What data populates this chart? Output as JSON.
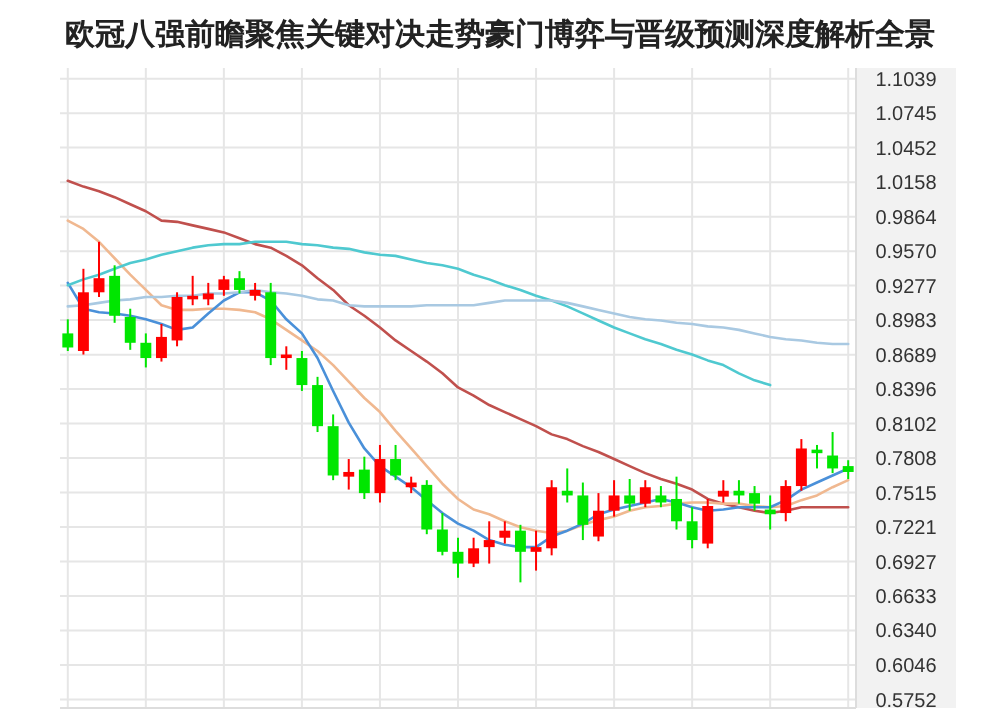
{
  "chart_data": {
    "type": "candlestick",
    "title": "欧冠八强前瞻聚焦关键对决走势豪门博弈与晋级预测深度解析全景",
    "categories": [
      null,
      null,
      null,
      null,
      null,
      null,
      null,
      null,
      null,
      null,
      null,
      null,
      null,
      null,
      null,
      null,
      null,
      null,
      null,
      null,
      null,
      null,
      null,
      null,
      null,
      null,
      null,
      null,
      null,
      null,
      null,
      null,
      null,
      null,
      null,
      null,
      null,
      null,
      null,
      null,
      null,
      null,
      null,
      null,
      null,
      null,
      null,
      null,
      null,
      null,
      null
    ],
    "ohlc": [
      [
        0.887,
        0.899,
        0.872,
        0.875
      ],
      [
        0.872,
        0.942,
        0.869,
        0.922
      ],
      [
        0.922,
        0.965,
        0.918,
        0.934
      ],
      [
        0.936,
        0.945,
        0.896,
        0.902
      ],
      [
        0.901,
        0.908,
        0.873,
        0.879
      ],
      [
        0.879,
        0.887,
        0.858,
        0.866
      ],
      [
        0.866,
        0.895,
        0.863,
        0.884
      ],
      [
        0.881,
        0.922,
        0.876,
        0.918
      ],
      [
        0.916,
        0.936,
        0.911,
        0.919
      ],
      [
        0.916,
        0.93,
        0.911,
        0.921
      ],
      [
        0.924,
        0.936,
        0.919,
        0.933
      ],
      [
        0.934,
        0.94,
        0.921,
        0.924
      ],
      [
        0.919,
        0.93,
        0.915,
        0.924
      ],
      [
        0.922,
        0.93,
        0.86,
        0.866
      ],
      [
        0.866,
        0.876,
        0.856,
        0.869
      ],
      [
        0.866,
        0.872,
        0.838,
        0.843
      ],
      [
        0.843,
        0.85,
        0.803,
        0.808
      ],
      [
        0.808,
        0.818,
        0.762,
        0.766
      ],
      [
        0.765,
        0.78,
        0.754,
        0.769
      ],
      [
        0.771,
        0.782,
        0.746,
        0.751
      ],
      [
        0.751,
        0.792,
        0.743,
        0.78
      ],
      [
        0.78,
        0.792,
        0.762,
        0.766
      ],
      [
        0.756,
        0.765,
        0.751,
        0.76
      ],
      [
        0.758,
        0.762,
        0.716,
        0.72
      ],
      [
        0.72,
        0.734,
        0.698,
        0.701
      ],
      [
        0.701,
        0.713,
        0.679,
        0.691
      ],
      [
        0.691,
        0.713,
        0.688,
        0.704
      ],
      [
        0.705,
        0.727,
        0.691,
        0.711
      ],
      [
        0.713,
        0.727,
        0.708,
        0.719
      ],
      [
        0.719,
        0.724,
        0.675,
        0.701
      ],
      [
        0.701,
        0.719,
        0.685,
        0.705
      ],
      [
        0.704,
        0.762,
        0.698,
        0.756
      ],
      [
        0.753,
        0.772,
        0.743,
        0.749
      ],
      [
        0.749,
        0.76,
        0.711,
        0.724
      ],
      [
        0.714,
        0.751,
        0.71,
        0.736
      ],
      [
        0.736,
        0.762,
        0.731,
        0.749
      ],
      [
        0.749,
        0.763,
        0.736,
        0.742
      ],
      [
        0.742,
        0.762,
        0.739,
        0.756
      ],
      [
        0.749,
        0.757,
        0.739,
        0.743
      ],
      [
        0.746,
        0.765,
        0.72,
        0.727
      ],
      [
        0.727,
        0.739,
        0.704,
        0.711
      ],
      [
        0.708,
        0.746,
        0.704,
        0.74
      ],
      [
        0.748,
        0.762,
        0.743,
        0.753
      ],
      [
        0.753,
        0.762,
        0.742,
        0.749
      ],
      [
        0.751,
        0.757,
        0.736,
        0.742
      ],
      [
        0.737,
        0.749,
        0.72,
        0.733
      ],
      [
        0.734,
        0.762,
        0.727,
        0.757
      ],
      [
        0.757,
        0.797,
        0.753,
        0.789
      ],
      [
        0.788,
        0.792,
        0.772,
        0.785
      ],
      [
        0.783,
        0.803,
        0.768,
        0.772
      ],
      [
        0.774,
        0.779,
        0.763,
        0.769
      ]
    ],
    "colors": [
      "#00e600",
      "#ff0000",
      "#ff0000",
      "#00e600",
      "#00e600",
      "#00e600",
      "#ff0000",
      "#ff0000",
      "#ff0000",
      "#ff0000",
      "#ff0000",
      "#00e600",
      "#ff0000",
      "#00e600",
      "#ff0000",
      "#00e600",
      "#00e600",
      "#00e600",
      "#ff0000",
      "#00e600",
      "#ff0000",
      "#00e600",
      "#ff0000",
      "#00e600",
      "#00e600",
      "#00e600",
      "#ff0000",
      "#ff0000",
      "#ff0000",
      "#00e600",
      "#ff0000",
      "#ff0000",
      "#00e600",
      "#00e600",
      "#ff0000",
      "#ff0000",
      "#00e600",
      "#ff0000",
      "#00e600",
      "#00e600",
      "#00e600",
      "#ff0000",
      "#ff0000",
      "#00e600",
      "#00e600",
      "#00e600",
      "#ff0000",
      "#ff0000",
      "#00e600",
      "#00e600",
      "#00e600"
    ],
    "series": [
      {
        "type": "line",
        "color": "#c0504d",
        "values": [
          1.017,
          1.012,
          1.008,
          1.003,
          0.997,
          0.991,
          0.983,
          0.982,
          0.979,
          0.976,
          0.973,
          0.968,
          0.963,
          0.96,
          0.953,
          0.945,
          0.934,
          0.924,
          0.911,
          0.902,
          0.892,
          0.881,
          0.872,
          0.863,
          0.853,
          0.841,
          0.834,
          0.826,
          0.82,
          0.814,
          0.808,
          0.801,
          0.797,
          0.791,
          0.786,
          0.78,
          0.774,
          0.768,
          0.763,
          0.759,
          0.754,
          0.746,
          0.742,
          0.739,
          0.736,
          0.734,
          0.736,
          0.739,
          0.739,
          0.739,
          0.739
        ]
      },
      {
        "type": "line",
        "color": "#f0b890",
        "values": [
          0.983,
          0.976,
          0.965,
          0.951,
          0.937,
          0.924,
          0.911,
          0.907,
          0.907,
          0.908,
          0.908,
          0.907,
          0.905,
          0.899,
          0.89,
          0.881,
          0.872,
          0.86,
          0.846,
          0.832,
          0.82,
          0.804,
          0.789,
          0.774,
          0.759,
          0.746,
          0.737,
          0.733,
          0.727,
          0.722,
          0.719,
          0.717,
          0.719,
          0.724,
          0.728,
          0.731,
          0.736,
          0.739,
          0.74,
          0.742,
          0.743,
          0.743,
          0.742,
          0.742,
          0.74,
          0.739,
          0.74,
          0.745,
          0.749,
          0.756,
          0.762
        ]
      },
      {
        "type": "line",
        "color": "#4a90d9",
        "values": [
          0.93,
          0.908,
          0.905,
          0.904,
          0.902,
          0.899,
          0.895,
          0.89,
          0.892,
          0.904,
          0.915,
          0.922,
          0.922,
          0.915,
          0.899,
          0.887,
          0.866,
          0.838,
          0.811,
          0.789,
          0.774,
          0.765,
          0.756,
          0.745,
          0.734,
          0.725,
          0.719,
          0.711,
          0.707,
          0.705,
          0.705,
          0.714,
          0.719,
          0.725,
          0.733,
          0.737,
          0.74,
          0.743,
          0.746,
          0.743,
          0.739,
          0.736,
          0.737,
          0.739,
          0.739,
          0.739,
          0.745,
          0.754,
          0.76,
          0.766,
          0.772
        ]
      },
      {
        "type": "line",
        "color": "#4fc9d0",
        "values": [
          0.928,
          0.933,
          0.937,
          0.942,
          0.947,
          0.95,
          0.954,
          0.957,
          0.96,
          0.962,
          0.963,
          0.963,
          0.965,
          0.965,
          0.965,
          0.963,
          0.962,
          0.96,
          0.959,
          0.956,
          0.954,
          0.953,
          0.95,
          0.947,
          0.945,
          0.942,
          0.937,
          0.933,
          0.928,
          0.924,
          0.919,
          0.915,
          0.91,
          0.904,
          0.898,
          0.892,
          0.887,
          0.882,
          0.878,
          0.873,
          0.869,
          0.864,
          0.86,
          0.853,
          0.847,
          0.843,
          null,
          null,
          null,
          null,
          null
        ]
      },
      {
        "type": "line",
        "color": "#a9c9e2",
        "values": [
          0.91,
          0.911,
          0.913,
          0.915,
          0.916,
          0.918,
          0.918,
          0.919,
          0.919,
          0.921,
          0.921,
          0.922,
          0.924,
          0.922,
          0.921,
          0.919,
          0.916,
          0.915,
          0.911,
          0.91,
          0.91,
          0.91,
          0.91,
          0.911,
          0.911,
          0.911,
          0.911,
          0.913,
          0.915,
          0.915,
          0.915,
          0.915,
          0.913,
          0.91,
          0.907,
          0.904,
          0.901,
          0.899,
          0.898,
          0.896,
          0.895,
          0.893,
          0.892,
          0.89,
          0.887,
          0.884,
          0.882,
          0.881,
          0.879,
          0.878,
          0.878
        ]
      }
    ],
    "ylim": [
      0.568,
      1.113
    ],
    "yticks": [
      1.1039,
      1.0745,
      1.0452,
      1.0158,
      0.9864,
      {
        "value": 0.957,
        "label": "0.9570"
      },
      0.9277,
      0.8983,
      0.8689,
      0.8396,
      0.8102,
      0.7808,
      0.7515,
      0.7221,
      0.6927,
      0.6633,
      {
        "value": 0.634,
        "label": "0.6340"
      },
      0.6046,
      0.5752
    ],
    "grid": true
  }
}
